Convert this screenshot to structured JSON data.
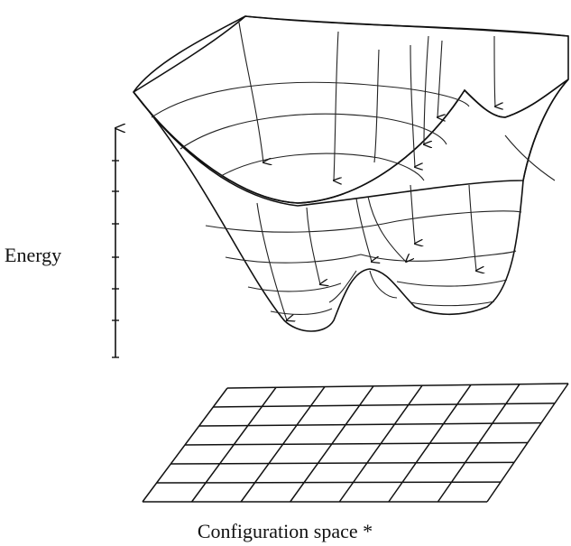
{
  "axis_label": "Energy",
  "caption": "Configuration space *"
}
